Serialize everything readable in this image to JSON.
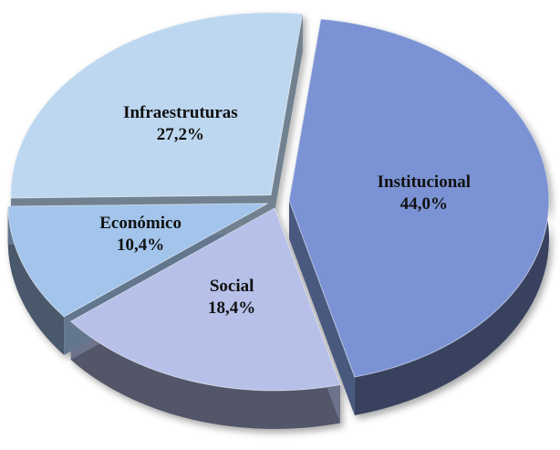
{
  "chart_data": {
    "type": "pie",
    "categories": [
      "Institucional",
      "Social",
      "Económico",
      "Infraestruturas"
    ],
    "values": [
      44.0,
      18.4,
      10.4,
      27.2
    ],
    "value_labels": [
      "44,0%",
      "18,4%",
      "10,4%",
      "27,2%"
    ],
    "colors": [
      "#7b93d4",
      "#b6c0e8",
      "#a3c5ec",
      "#bdd7f0"
    ]
  }
}
